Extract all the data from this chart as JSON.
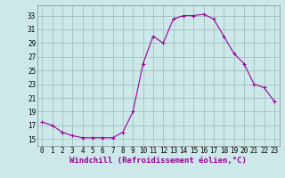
{
  "x": [
    0,
    1,
    2,
    3,
    4,
    5,
    6,
    7,
    8,
    9,
    10,
    11,
    12,
    13,
    14,
    15,
    16,
    17,
    18,
    19,
    20,
    21,
    22,
    23
  ],
  "y": [
    17.5,
    17.0,
    16.0,
    15.5,
    15.2,
    15.2,
    15.2,
    15.2,
    16.0,
    19.0,
    26.0,
    30.0,
    29.0,
    32.5,
    33.0,
    33.0,
    33.2,
    32.5,
    30.0,
    27.5,
    26.0,
    23.0,
    22.5,
    20.5
  ],
  "line_color": "#990099",
  "marker": "+",
  "markersize": 3,
  "bg_color": "#cce8e8",
  "grid_color": "#99bbbb",
  "xlabel": "Windchill (Refroidissement éolien,°C)",
  "xlabel_color": "#990099",
  "ylabel_ticks": [
    15,
    17,
    19,
    21,
    23,
    25,
    27,
    29,
    31,
    33
  ],
  "ylim": [
    14.0,
    34.5
  ],
  "xlim": [
    -0.5,
    23.5
  ],
  "xticks": [
    0,
    1,
    2,
    3,
    4,
    5,
    6,
    7,
    8,
    9,
    10,
    11,
    12,
    13,
    14,
    15,
    16,
    17,
    18,
    19,
    20,
    21,
    22,
    23
  ],
  "tick_fontsize": 5.5,
  "xlabel_fontsize": 6.5,
  "linewidth": 0.8
}
